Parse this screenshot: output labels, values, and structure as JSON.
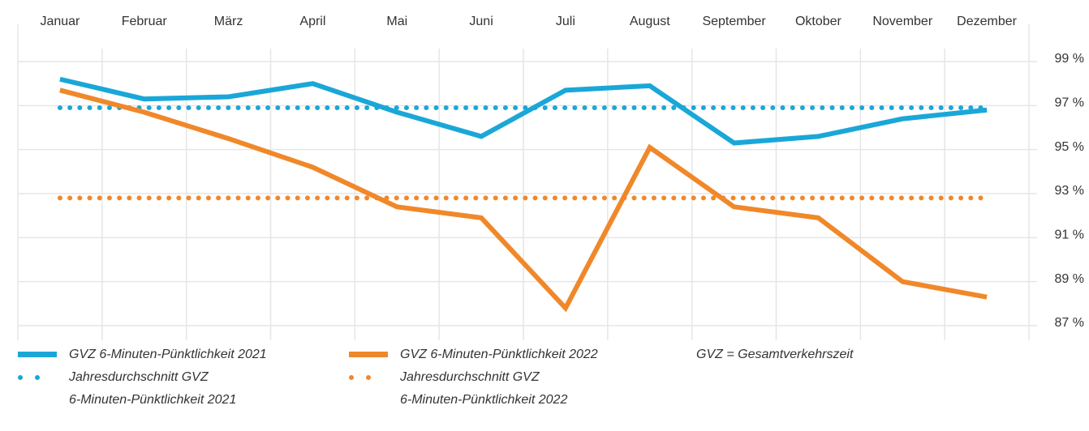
{
  "chart_data": {
    "type": "line",
    "categories": [
      "Januar",
      "Februar",
      "März",
      "April",
      "Mai",
      "Juni",
      "Juli",
      "August",
      "September",
      "Oktober",
      "November",
      "Dezember"
    ],
    "series": [
      {
        "name": "GVZ 6-Minuten-Pünktlichkeit 2021",
        "color": "#1aa7d8",
        "values": [
          98.2,
          97.3,
          97.4,
          98.0,
          96.7,
          95.6,
          97.7,
          97.9,
          95.3,
          95.6,
          96.4,
          96.8
        ]
      },
      {
        "name": "GVZ 6-Minuten-Pünktlichkeit 2022",
        "color": "#f0882a",
        "values": [
          97.7,
          96.7,
          95.5,
          94.2,
          92.4,
          91.9,
          87.8,
          95.1,
          92.4,
          91.9,
          89.0,
          88.3
        ]
      }
    ],
    "averages": [
      {
        "name": [
          "Jahresdurchschnitt GVZ",
          "6-Minuten-Pünktlichkeit 2021"
        ],
        "color": "#1aa7d8",
        "value": 96.9
      },
      {
        "name": [
          "Jahresdurchschnitt GVZ",
          "6-Minuten-Pünktlichkeit 2022"
        ],
        "color": "#f0882a",
        "value": 92.8
      }
    ],
    "note": "GVZ = Gesamtverkehrszeit",
    "ylim": [
      87,
      99
    ],
    "yticks": [
      {
        "value": 87,
        "label": "87 %"
      },
      {
        "value": 89,
        "label": "89 %"
      },
      {
        "value": 91,
        "label": "91 %"
      },
      {
        "value": 93,
        "label": "93 %"
      },
      {
        "value": 95,
        "label": "95 %"
      },
      {
        "value": 97,
        "label": "97 %"
      },
      {
        "value": 99,
        "label": "99 %"
      }
    ],
    "grid": true
  }
}
